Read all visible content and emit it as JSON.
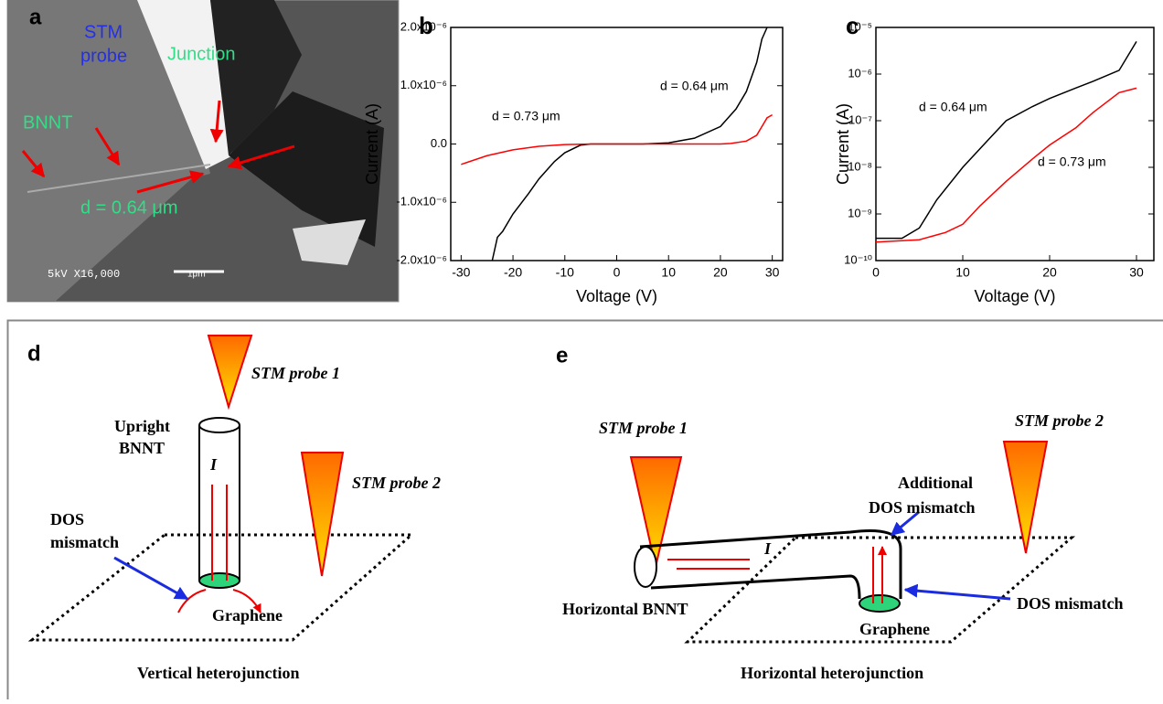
{
  "panel_a": {
    "label": "a",
    "stm_probe": [
      "STM",
      "probe"
    ],
    "junction": "Junction",
    "bnnt": "BNNT",
    "distance": "d = 0.64 μm",
    "sem_info": "5kV  X16,000",
    "scale_bar": "1μm"
  },
  "chart_data": [
    {
      "type": "line",
      "panel_label": "b",
      "x_label": "Voltage (V)",
      "y_label": "Current (A)",
      "xlim": [
        -32,
        32
      ],
      "xticks": [
        -30,
        -20,
        -10,
        0,
        10,
        20,
        30
      ],
      "ylim": [
        -2e-06,
        2e-06
      ],
      "yticks": [
        {
          "value": 2e-06,
          "label": "2.0x10⁻⁶"
        },
        {
          "value": 1e-06,
          "label": "1.0x10⁻⁶"
        },
        {
          "value": 0,
          "label": "0.0"
        },
        {
          "value": -1e-06,
          "label": "-1.0x10⁻⁶"
        },
        {
          "value": -2e-06,
          "label": "-2.0x10⁻⁶"
        }
      ],
      "annotations": [
        "d = 0.64 μm",
        "d = 0.73 μm"
      ],
      "series": [
        {
          "color": "#000000",
          "x": [
            -24,
            -23,
            -22,
            -20,
            -17,
            -15,
            -12,
            -10,
            -7,
            -5,
            0,
            5,
            10,
            15,
            20,
            23,
            25,
            27,
            28,
            29
          ],
          "values": [
            -2e-06,
            -1.6e-06,
            -1.5e-06,
            -1.2e-06,
            -8.5e-07,
            -6e-07,
            -3e-07,
            -1.5e-07,
            -2e-08,
            0,
            0,
            0,
            2e-08,
            1e-07,
            3e-07,
            6e-07,
            9e-07,
            1.4e-06,
            1.8e-06,
            2e-06
          ]
        },
        {
          "color": "#ff0000",
          "x": [
            -30,
            -25,
            -20,
            -15,
            -10,
            -5,
            0,
            10,
            20,
            22,
            25,
            27,
            28,
            29,
            30
          ],
          "values": [
            -3.5e-07,
            -2e-07,
            -1e-07,
            -4e-08,
            -1e-08,
            0,
            0,
            0,
            0,
            1e-08,
            5e-08,
            1.5e-07,
            3e-07,
            4.5e-07,
            5e-07
          ]
        }
      ]
    },
    {
      "type": "line",
      "panel_label": "c",
      "x_label": "Voltage (V)",
      "y_label": "Current (A)",
      "log_y": true,
      "xlim": [
        0,
        32
      ],
      "xticks": [
        0,
        10,
        20,
        30
      ],
      "ylim": [
        1e-10,
        1e-05
      ],
      "yticks": [
        {
          "value": 1e-05,
          "label": "10⁻⁵"
        },
        {
          "value": 1e-06,
          "label": "10⁻⁶"
        },
        {
          "value": 1e-07,
          "label": "10⁻⁷"
        },
        {
          "value": 1e-08,
          "label": "10⁻⁸"
        },
        {
          "value": 1e-09,
          "label": "10⁻⁹"
        },
        {
          "value": 1e-10,
          "label": "10⁻¹⁰"
        }
      ],
      "annotations": [
        "d = 0.64 μm",
        "d = 0.73 μm"
      ],
      "series": [
        {
          "color": "#000000",
          "x": [
            0,
            3,
            5,
            7,
            10,
            13,
            15,
            18,
            20,
            23,
            25,
            28,
            30
          ],
          "values": [
            3e-10,
            3e-10,
            5e-10,
            2e-09,
            1e-08,
            4e-08,
            1e-07,
            2e-07,
            3e-07,
            5e-07,
            7e-07,
            1.2e-06,
            5e-06
          ]
        },
        {
          "color": "#ff0000",
          "x": [
            0,
            5,
            8,
            10,
            12,
            15,
            18,
            20,
            23,
            25,
            28,
            30
          ],
          "values": [
            2.5e-10,
            2.8e-10,
            4e-10,
            6e-10,
            1.5e-09,
            5e-09,
            1.5e-08,
            3e-08,
            7e-08,
            1.5e-07,
            4e-07,
            5e-07
          ]
        }
      ]
    }
  ],
  "panel_d": {
    "label": "d",
    "probe1": "STM probe 1",
    "upright": [
      "Upright",
      "BNNT"
    ],
    "current": "I",
    "probe2": "STM probe 2",
    "dos": [
      "DOS",
      "mismatch"
    ],
    "graphene": "Graphene",
    "caption": "Vertical heterojunction"
  },
  "panel_e": {
    "label": "e",
    "probe1": "STM probe 1",
    "probe2": "STM probe 2",
    "additional": [
      "Additional",
      "DOS mismatch"
    ],
    "current": "I",
    "bnnt": "Horizontal BNNT",
    "graphene": "Graphene",
    "dos": "DOS mismatch",
    "caption": "Horizontal heterojunction"
  }
}
